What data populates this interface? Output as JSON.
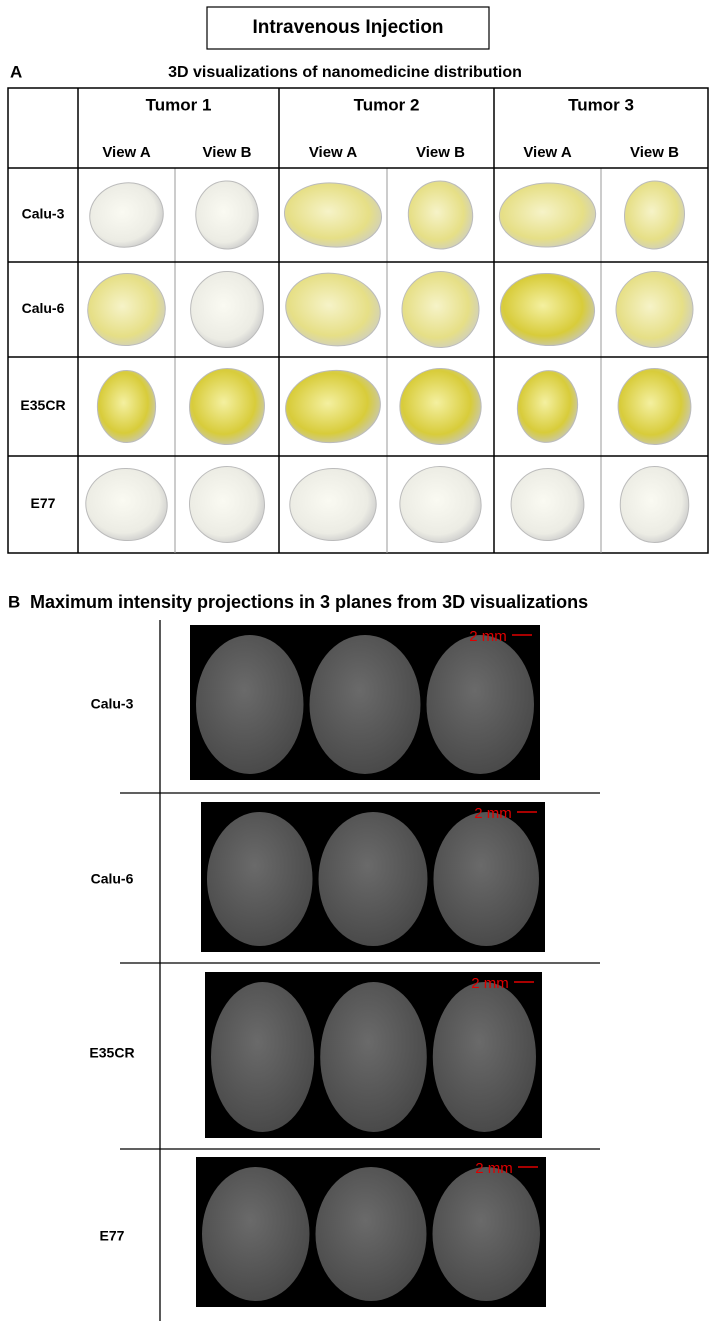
{
  "header": {
    "title": "Intravenous Injection"
  },
  "panel_a": {
    "label": "A",
    "title": "3D visualizations of nanomedicine distribution",
    "tumors": [
      "Tumor 1",
      "Tumor 2",
      "Tumor 3"
    ],
    "views": [
      "View A",
      "View B",
      "View A",
      "View B",
      "View A",
      "View B"
    ],
    "rows": [
      "Calu-3",
      "Calu-6",
      "E35CR",
      "E77"
    ]
  },
  "panel_b": {
    "label": "B",
    "title": "Maximum intensity projections in 3 planes from 3D visualizations",
    "rows": [
      {
        "label": "Calu-3",
        "scale": "2 mm"
      },
      {
        "label": "Calu-6",
        "scale": "2 mm"
      },
      {
        "label": "E35CR",
        "scale": "2 mm"
      },
      {
        "label": "E77",
        "scale": "2 mm"
      }
    ]
  }
}
